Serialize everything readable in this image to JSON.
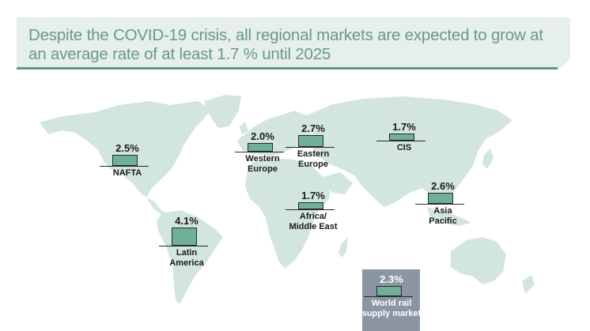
{
  "header": {
    "title": "Despite the COVID-19 crisis, all regional markets are expected to grow at an average rate of at least 1.7 % until 2025"
  },
  "colors": {
    "banner_bg": "#e6efec",
    "banner_rule": "#5f9a7f",
    "headline_text": "#6a9a84",
    "land": "#d3e5df",
    "bar_fill": "#6fb096",
    "world_box": "#8c96a3"
  },
  "chart_data": {
    "type": "bar",
    "title": "Despite the COVID-19 crisis, all regional markets are expected to grow at an average rate of at least 1.7 % until 2025",
    "unit": "%",
    "categories": [
      "NAFTA",
      "Western Europe",
      "Eastern Europe",
      "CIS",
      "Africa/ Middle East",
      "Asia Pacific",
      "Latin America",
      "World rail supply market"
    ],
    "values": [
      2.5,
      2.0,
      2.7,
      1.7,
      1.7,
      2.6,
      4.1,
      2.3
    ],
    "markers": [
      {
        "id": "nafta",
        "value": 2.5,
        "value_label": "2.5%",
        "label_lines": [
          "NAFTA"
        ]
      },
      {
        "id": "western-europe",
        "value": 2.0,
        "value_label": "2.0%",
        "label_lines": [
          "Western",
          "Europe"
        ]
      },
      {
        "id": "eastern-europe",
        "value": 2.7,
        "value_label": "2.7%",
        "label_lines": [
          "Eastern",
          "Europe"
        ]
      },
      {
        "id": "cis",
        "value": 1.7,
        "value_label": "1.7%",
        "label_lines": [
          "CIS"
        ]
      },
      {
        "id": "africa-middle-east",
        "value": 1.7,
        "value_label": "1.7%",
        "label_lines": [
          "Africa/",
          "Middle East"
        ]
      },
      {
        "id": "asia-pacific",
        "value": 2.6,
        "value_label": "2.6%",
        "label_lines": [
          "Asia",
          "Pacific"
        ]
      },
      {
        "id": "latin-america",
        "value": 4.1,
        "value_label": "4.1%",
        "label_lines": [
          "Latin",
          "America"
        ]
      },
      {
        "id": "world",
        "value": 2.3,
        "value_label": "2.3%",
        "label_lines": [
          "World rail",
          "supply market"
        ]
      }
    ]
  }
}
